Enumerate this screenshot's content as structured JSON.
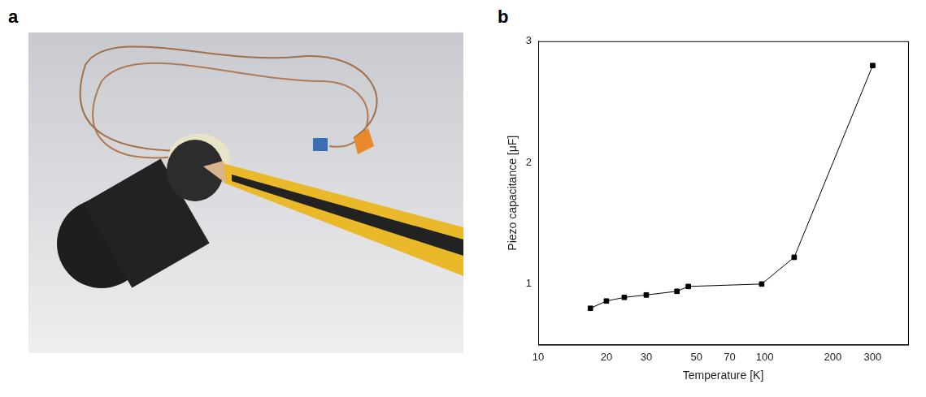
{
  "panel_labels": [
    "a",
    "b"
  ],
  "chart_data": {
    "type": "line",
    "x_label": "Temperature [K]",
    "y_label": "Piezo capacitance [μF]",
    "x": [
      17,
      20,
      24,
      30,
      41,
      46,
      97,
      135,
      300
    ],
    "values": [
      0.8,
      0.86,
      0.89,
      0.91,
      0.94,
      0.98,
      1.0,
      1.22,
      2.8
    ],
    "color": "#000000",
    "marker": "square",
    "line_style": "solid",
    "log": "x",
    "xlim": [
      10,
      430
    ],
    "xticks": [
      10,
      20,
      30,
      50,
      70,
      100,
      200,
      300
    ],
    "ylim": [
      0.5,
      3
    ],
    "yticks": [
      1,
      2,
      3
    ],
    "grid": false
  }
}
